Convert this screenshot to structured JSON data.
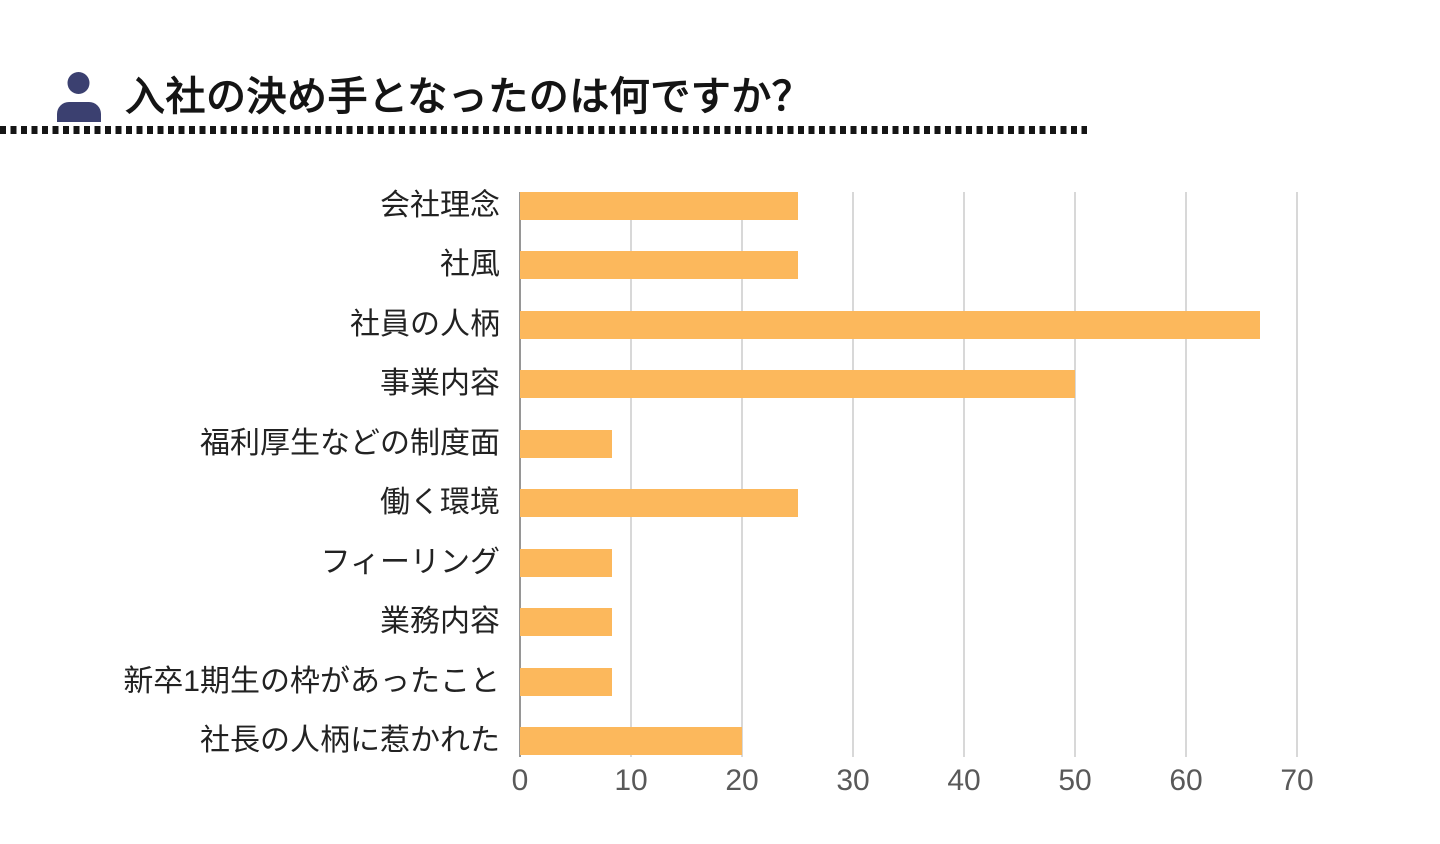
{
  "header": {
    "title": "入社の決め手となったのは何ですか？",
    "icon": "person-icon",
    "icon_color": "#3B4070",
    "divider_color": "#151515"
  },
  "chart_data": {
    "type": "bar",
    "orientation": "horizontal",
    "title": "入社の決め手となったのは何ですか？",
    "categories": [
      "会社理念",
      "社風",
      "社員の人柄",
      "事業内容",
      "福利厚生などの制度面",
      "働く環境",
      "フィーリング",
      "業務内容",
      "新卒1期生の枠があったこと",
      "社長の人柄に惹かれた"
    ],
    "values": [
      25,
      25,
      66.7,
      50,
      8.3,
      25,
      8.3,
      8.3,
      8.3,
      20
    ],
    "xlabel": "",
    "ylabel": "",
    "xlim": [
      0,
      70
    ],
    "xticks": [
      0,
      10,
      20,
      30,
      40,
      50,
      60,
      70
    ],
    "legend": "none",
    "grid": "vertical",
    "colors": {
      "bar": "#FCB85C",
      "gridline": "#D8D8D8",
      "axis_line": "#969696",
      "tick_label": "#595959",
      "category_label": "#222222"
    }
  }
}
